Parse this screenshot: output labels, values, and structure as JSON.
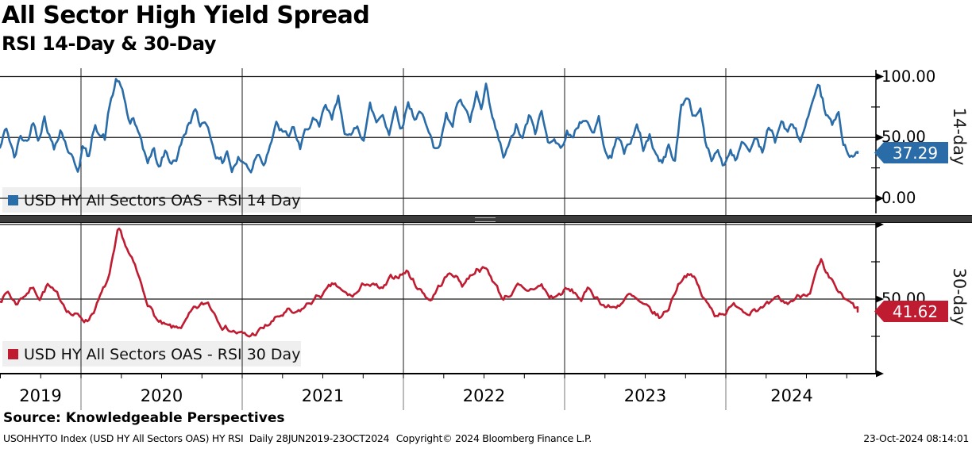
{
  "header": {
    "title": "All Sector High Yield Spread",
    "subtitle": "RSI 14-Day & 30-Day"
  },
  "colors": {
    "rsi14": "#2A6CA8",
    "rsi30": "#BF1B31",
    "grid": "#1a1a1a",
    "axis": "#000000",
    "legend_bg": "#EFEFEF",
    "divider": "#3c3c3c",
    "year_separator": "#777777"
  },
  "legend": {
    "rsi14": "USD HY All Sectors OAS - RSI 14 Day",
    "rsi30": "USD HY All Sectors OAS - RSI 30 Day"
  },
  "badges": {
    "rsi14": "37.29",
    "rsi30": "41.62"
  },
  "panel_labels": {
    "top": "14-day",
    "bottom": "30-day"
  },
  "right_axis": {
    "top_labels": [
      {
        "v": 100,
        "t": "100.00"
      },
      {
        "v": 50,
        "t": "50.00"
      },
      {
        "v": 0,
        "t": "0.00"
      }
    ],
    "bottom_labels": [
      {
        "v": 50,
        "t": "50.00"
      }
    ],
    "minor_tick_values": [
      25,
      75
    ]
  },
  "x_axis": {
    "years": [
      "2019",
      "2020",
      "2021",
      "2022",
      "2023",
      "2024"
    ]
  },
  "footer": {
    "source": "Source: Knowledgeable Perspectives",
    "ticker_line": "USOHHYTO Index (USD HY All Sectors OAS) HY RSI  Daily 28JUN2019-23OCT2024",
    "copyright": "Copyright© 2024 Bloomberg Finance L.P.",
    "timestamp": "23-Oct-2024 08:14:01"
  },
  "chart_data": [
    {
      "type": "line",
      "panel": "top",
      "name": "USD HY All Sectors OAS - RSI 14 Day",
      "axis_label": "14-day",
      "last_value": 37.29,
      "ylim": [
        0,
        100
      ],
      "ytick_labels": [
        "0.00",
        "50.00",
        "100.00"
      ],
      "x_range": [
        "28JUN2019",
        "23OCT2024"
      ],
      "grid": true,
      "legend_position": "bottom-left",
      "points": [
        [
          0,
          41
        ],
        [
          8,
          57
        ],
        [
          14,
          44
        ],
        [
          18,
          32
        ],
        [
          26,
          50
        ],
        [
          34,
          46
        ],
        [
          42,
          64
        ],
        [
          48,
          52
        ],
        [
          56,
          70
        ],
        [
          62,
          55
        ],
        [
          68,
          41
        ],
        [
          76,
          60
        ],
        [
          84,
          45
        ],
        [
          90,
          35
        ],
        [
          98,
          25
        ],
        [
          104,
          44
        ],
        [
          112,
          32
        ],
        [
          120,
          62
        ],
        [
          126,
          55
        ],
        [
          132,
          50
        ],
        [
          138,
          75
        ],
        [
          143,
          88
        ],
        [
          147,
          99
        ],
        [
          152,
          90
        ],
        [
          157,
          78
        ],
        [
          163,
          60
        ],
        [
          168,
          66
        ],
        [
          174,
          52
        ],
        [
          180,
          36
        ],
        [
          186,
          30
        ],
        [
          193,
          40
        ],
        [
          200,
          24
        ],
        [
          208,
          38
        ],
        [
          214,
          30
        ],
        [
          222,
          34
        ],
        [
          230,
          48
        ],
        [
          238,
          62
        ],
        [
          245,
          73
        ],
        [
          252,
          57
        ],
        [
          258,
          66
        ],
        [
          266,
          50
        ],
        [
          274,
          35
        ],
        [
          280,
          29
        ],
        [
          286,
          41
        ],
        [
          292,
          24
        ],
        [
          300,
          33
        ],
        [
          308,
          28
        ],
        [
          316,
          24
        ],
        [
          324,
          40
        ],
        [
          332,
          32
        ],
        [
          340,
          48
        ],
        [
          348,
          60
        ],
        [
          354,
          55
        ],
        [
          362,
          48
        ],
        [
          370,
          58
        ],
        [
          378,
          38
        ],
        [
          386,
          55
        ],
        [
          394,
          67
        ],
        [
          402,
          54
        ],
        [
          410,
          73
        ],
        [
          418,
          62
        ],
        [
          426,
          80
        ],
        [
          434,
          58
        ],
        [
          442,
          48
        ],
        [
          450,
          60
        ],
        [
          458,
          52
        ],
        [
          466,
          76
        ],
        [
          474,
          62
        ],
        [
          482,
          70
        ],
        [
          490,
          56
        ],
        [
          498,
          76
        ],
        [
          506,
          60
        ],
        [
          514,
          80
        ],
        [
          522,
          68
        ],
        [
          530,
          74
        ],
        [
          538,
          54
        ],
        [
          546,
          41
        ],
        [
          554,
          50
        ],
        [
          562,
          68
        ],
        [
          570,
          62
        ],
        [
          576,
          80
        ],
        [
          584,
          74
        ],
        [
          592,
          58
        ],
        [
          600,
          84
        ],
        [
          606,
          70
        ],
        [
          612,
          87
        ],
        [
          620,
          62
        ],
        [
          628,
          45
        ],
        [
          634,
          32
        ],
        [
          642,
          42
        ],
        [
          650,
          58
        ],
        [
          658,
          47
        ],
        [
          666,
          65
        ],
        [
          674,
          53
        ],
        [
          682,
          70
        ],
        [
          690,
          44
        ],
        [
          698,
          55
        ],
        [
          706,
          40
        ],
        [
          714,
          58
        ],
        [
          722,
          47
        ],
        [
          730,
          62
        ],
        [
          738,
          67
        ],
        [
          746,
          54
        ],
        [
          754,
          64
        ],
        [
          762,
          44
        ],
        [
          770,
          34
        ],
        [
          778,
          52
        ],
        [
          786,
          38
        ],
        [
          794,
          49
        ],
        [
          802,
          58
        ],
        [
          810,
          40
        ],
        [
          818,
          52
        ],
        [
          826,
          37
        ],
        [
          834,
          28
        ],
        [
          842,
          42
        ],
        [
          850,
          32
        ],
        [
          858,
          76
        ],
        [
          866,
          84
        ],
        [
          874,
          68
        ],
        [
          882,
          74
        ],
        [
          890,
          40
        ],
        [
          896,
          31
        ],
        [
          904,
          39
        ],
        [
          912,
          28
        ],
        [
          920,
          42
        ],
        [
          928,
          34
        ],
        [
          936,
          46
        ],
        [
          944,
          38
        ],
        [
          952,
          52
        ],
        [
          960,
          41
        ],
        [
          968,
          58
        ],
        [
          976,
          47
        ],
        [
          984,
          64
        ],
        [
          992,
          54
        ],
        [
          1000,
          58
        ],
        [
          1008,
          47
        ],
        [
          1016,
          61
        ],
        [
          1024,
          72
        ],
        [
          1032,
          87
        ],
        [
          1040,
          68
        ],
        [
          1048,
          58
        ],
        [
          1056,
          66
        ],
        [
          1062,
          45
        ],
        [
          1070,
          39
        ],
        [
          1078,
          36
        ],
        [
          1080,
          37.29
        ]
      ]
    },
    {
      "type": "line",
      "panel": "bottom",
      "name": "USD HY All Sectors OAS - RSI 30 Day",
      "axis_label": "30-day",
      "last_value": 41.62,
      "ylim": [
        0,
        100
      ],
      "ytick_labels": [
        "50.00"
      ],
      "x_range": [
        "28JUN2019",
        "23OCT2024"
      ],
      "grid": true,
      "legend_position": "bottom-left",
      "points": [
        [
          0,
          50
        ],
        [
          10,
          55
        ],
        [
          20,
          47
        ],
        [
          30,
          53
        ],
        [
          40,
          58
        ],
        [
          50,
          52
        ],
        [
          60,
          60
        ],
        [
          70,
          52
        ],
        [
          80,
          47
        ],
        [
          90,
          41
        ],
        [
          100,
          38
        ],
        [
          110,
          36
        ],
        [
          120,
          45
        ],
        [
          130,
          55
        ],
        [
          138,
          65
        ],
        [
          144,
          80
        ],
        [
          149,
          94
        ],
        [
          155,
          89
        ],
        [
          162,
          80
        ],
        [
          170,
          70
        ],
        [
          180,
          55
        ],
        [
          190,
          44
        ],
        [
          200,
          34
        ],
        [
          210,
          30
        ],
        [
          220,
          29
        ],
        [
          232,
          33
        ],
        [
          242,
          40
        ],
        [
          252,
          44
        ],
        [
          262,
          47
        ],
        [
          272,
          40
        ],
        [
          282,
          33
        ],
        [
          292,
          30
        ],
        [
          302,
          27
        ],
        [
          312,
          24
        ],
        [
          322,
          27
        ],
        [
          332,
          30
        ],
        [
          342,
          34
        ],
        [
          352,
          38
        ],
        [
          362,
          41
        ],
        [
          372,
          38
        ],
        [
          382,
          43
        ],
        [
          392,
          48
        ],
        [
          402,
          52
        ],
        [
          412,
          55
        ],
        [
          422,
          59
        ],
        [
          432,
          53
        ],
        [
          442,
          51
        ],
        [
          452,
          55
        ],
        [
          462,
          61
        ],
        [
          472,
          58
        ],
        [
          482,
          55
        ],
        [
          492,
          62
        ],
        [
          502,
          66
        ],
        [
          512,
          69
        ],
        [
          522,
          61
        ],
        [
          532,
          55
        ],
        [
          542,
          50
        ],
        [
          552,
          58
        ],
        [
          562,
          65
        ],
        [
          572,
          67
        ],
        [
          582,
          60
        ],
        [
          592,
          66
        ],
        [
          602,
          72
        ],
        [
          612,
          70
        ],
        [
          622,
          62
        ],
        [
          632,
          51
        ],
        [
          642,
          54
        ],
        [
          652,
          58
        ],
        [
          662,
          53
        ],
        [
          672,
          57
        ],
        [
          682,
          59
        ],
        [
          692,
          51
        ],
        [
          702,
          52
        ],
        [
          712,
          56
        ],
        [
          722,
          54
        ],
        [
          732,
          50
        ],
        [
          742,
          56
        ],
        [
          752,
          51
        ],
        [
          762,
          46
        ],
        [
          772,
          44
        ],
        [
          782,
          48
        ],
        [
          792,
          52
        ],
        [
          802,
          48
        ],
        [
          812,
          43
        ],
        [
          822,
          40
        ],
        [
          832,
          37
        ],
        [
          842,
          44
        ],
        [
          852,
          58
        ],
        [
          860,
          66
        ],
        [
          868,
          69
        ],
        [
          876,
          62
        ],
        [
          884,
          52
        ],
        [
          892,
          45
        ],
        [
          900,
          40
        ],
        [
          910,
          42
        ],
        [
          920,
          44
        ],
        [
          930,
          46
        ],
        [
          940,
          42
        ],
        [
          950,
          46
        ],
        [
          960,
          44
        ],
        [
          970,
          45
        ],
        [
          980,
          48
        ],
        [
          990,
          46
        ],
        [
          1000,
          50
        ],
        [
          1010,
          53
        ],
        [
          1020,
          57
        ],
        [
          1028,
          68
        ],
        [
          1034,
          74
        ],
        [
          1040,
          64
        ],
        [
          1048,
          59
        ],
        [
          1056,
          54
        ],
        [
          1064,
          48
        ],
        [
          1072,
          45
        ],
        [
          1080,
          41.62
        ]
      ]
    }
  ]
}
